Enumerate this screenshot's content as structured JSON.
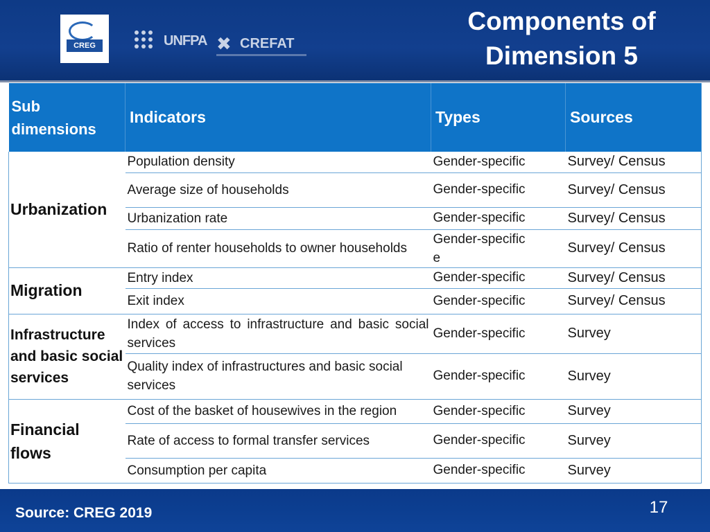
{
  "header": {
    "title_line1": "Components of",
    "title_line2": "Dimension 5",
    "logos": {
      "creg": "CREG",
      "unfpa": "UNFPA",
      "crefat": "CREFAT"
    }
  },
  "table": {
    "headers": {
      "sub_dimensions": "Sub dimensions",
      "indicators": "Indicators",
      "types": "Types",
      "sources": "Sources"
    },
    "groups": [
      {
        "name": "Urbanization",
        "rows": [
          {
            "indicator": "Population density",
            "type": "Gender-specific",
            "source": "Survey/ Census"
          },
          {
            "indicator": "Average size of households",
            "type": "Gender-specific",
            "source": "Survey/ Census"
          },
          {
            "indicator": "Urbanization rate",
            "type": "Gender-specific",
            "source": "Survey/ Census"
          },
          {
            "indicator": "Ratio of renter households to owner households",
            "type": "Gender-specific\ne",
            "source": "Survey/ Census"
          }
        ]
      },
      {
        "name": "Migration",
        "rows": [
          {
            "indicator": "Entry index",
            "type": "Gender-specific",
            "source": "Survey/ Census"
          },
          {
            "indicator": "Exit index",
            "type": "Gender-specific",
            "source": "Survey/ Census"
          }
        ]
      },
      {
        "name": "Infrastructure and basic social services",
        "rows": [
          {
            "indicator": "Index of access to infrastructure and basic social services",
            "type": "Gender-specific",
            "source": "Survey"
          },
          {
            "indicator": "Quality index of infrastructures and basic social services",
            "type": "Gender-specific",
            "source": "Survey"
          }
        ]
      },
      {
        "name": "Financial flows",
        "rows": [
          {
            "indicator": "Cost of the basket of housewives in the region",
            "type": "Gender-specific",
            "source": "Survey"
          },
          {
            "indicator": "Rate of access to formal transfer services",
            "type": "Gender-specific",
            "source": "Survey"
          },
          {
            "indicator": "Consumption per capita",
            "type": "Gender-specific",
            "source": "Survey"
          }
        ]
      }
    ]
  },
  "footer": {
    "source": "Source: CREG 2019",
    "page_number": "17"
  }
}
